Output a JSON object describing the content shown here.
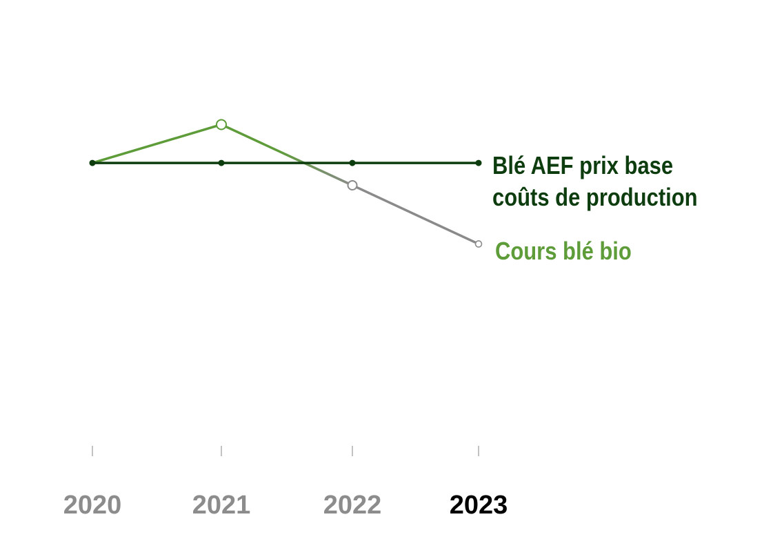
{
  "chart_data": {
    "type": "line",
    "x": [
      "2020",
      "2021",
      "2022",
      "2023"
    ],
    "highlighted_category": "2023",
    "ylim": [
      0,
      6
    ],
    "grid": true,
    "y_tick_labels_shown": false,
    "series": [
      {
        "name": "Blé AEF prix base coûts de production",
        "label_lines": [
          "Blé AEF prix base",
          "coûts de production"
        ],
        "values": [
          4.2,
          4.2,
          4.2,
          4.2
        ],
        "color": "#0d3d0f",
        "marker": "dot"
      },
      {
        "name": "Cours blé bio",
        "label_lines": [
          "Cours blé bio"
        ],
        "values": [
          4.2,
          4.75,
          3.88,
          3.04
        ],
        "color": "#5e9c3a",
        "fade_to_color": "#8a8a8a",
        "marker": "hollow-circle"
      }
    ],
    "colors": {
      "gridline": "#bdbdbd",
      "axis": "#a8a8a8",
      "tick_label": "#8c8c8c",
      "tick_label_highlight": "#000000"
    }
  }
}
